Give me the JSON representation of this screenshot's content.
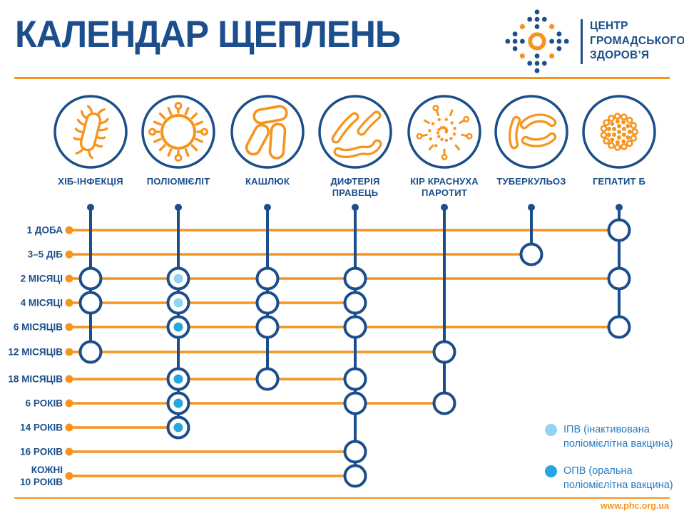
{
  "header": {
    "title": "КАЛЕНДАР ЩЕПЛЕНЬ",
    "org_name": "ЦЕНТР\nГРОМАДСЬКОГО\nЗДОРОВ’Я",
    "logo_icon": "phc-dotted-diamond-logo-icon"
  },
  "colors": {
    "navy": "#1B4E8A",
    "orange": "#F7941E",
    "legend_text": "#2A7CC0",
    "ipv_dot": "#92D3F1",
    "opv_dot": "#25A5E2"
  },
  "schedule": {
    "columns": [
      {
        "id": "hib",
        "label": "ХІБ-ІНФЕКЦІЯ",
        "icon": "hib-bacterium-icon"
      },
      {
        "id": "polio",
        "label": "ПОЛІОМІЄЛІТ",
        "icon": "polio-virus-icon"
      },
      {
        "id": "pertussis",
        "label": "КАШЛЮК",
        "icon": "pertussis-capsules-icon"
      },
      {
        "id": "diphtheria",
        "label": "ДИФТЕРІЯ\nПРАВЕЦЬ",
        "icon": "diphtheria-rods-icon"
      },
      {
        "id": "mmr",
        "label": "КІР КРАСНУХА\nПАРОТИТ",
        "icon": "measles-spiral-virus-icon"
      },
      {
        "id": "tb",
        "label": "ТУБЕРКУЛЬОЗ",
        "icon": "tuberculosis-rods-icon"
      },
      {
        "id": "hepb",
        "label": "ГЕПАТИТ Б",
        "icon": "hepatitis-b-cluster-icon"
      }
    ],
    "rows": [
      {
        "label": "1 ДОБА",
        "marks": [
          {
            "col": "hepb"
          }
        ]
      },
      {
        "label": "3–5 ДІБ",
        "marks": [
          {
            "col": "tb"
          }
        ]
      },
      {
        "label": "2 МІСЯЦІ",
        "marks": [
          {
            "col": "hib"
          },
          {
            "col": "polio",
            "dot": "ipv"
          },
          {
            "col": "pertussis"
          },
          {
            "col": "diphtheria"
          },
          {
            "col": "hepb"
          }
        ]
      },
      {
        "label": "4 МІСЯЦІ",
        "marks": [
          {
            "col": "hib"
          },
          {
            "col": "polio",
            "dot": "ipv"
          },
          {
            "col": "pertussis"
          },
          {
            "col": "diphtheria"
          }
        ]
      },
      {
        "label": "6 МІСЯЦІВ",
        "marks": [
          {
            "col": "polio",
            "dot": "opv"
          },
          {
            "col": "pertussis"
          },
          {
            "col": "diphtheria"
          },
          {
            "col": "hepb"
          }
        ]
      },
      {
        "label": "12 МІСЯЦІВ",
        "marks": [
          {
            "col": "hib"
          },
          {
            "col": "mmr"
          }
        ]
      },
      {
        "label": "18 МІСЯЦІВ",
        "marks": [
          {
            "col": "polio",
            "dot": "opv"
          },
          {
            "col": "pertussis"
          },
          {
            "col": "diphtheria"
          }
        ]
      },
      {
        "label": "6 РОКІВ",
        "marks": [
          {
            "col": "polio",
            "dot": "opv"
          },
          {
            "col": "diphtheria"
          },
          {
            "col": "mmr"
          }
        ]
      },
      {
        "label": "14 РОКІВ",
        "marks": [
          {
            "col": "polio",
            "dot": "opv"
          }
        ]
      },
      {
        "label": "16 РОКІВ",
        "marks": [
          {
            "col": "diphtheria"
          }
        ]
      },
      {
        "label": "КОЖНІ\n10 РОКІВ",
        "marks": [
          {
            "col": "diphtheria"
          }
        ]
      }
    ]
  },
  "legend": {
    "items": [
      {
        "id": "ipv",
        "color": "#92D3F1",
        "label": "ІПВ (інактивована\nполіомієлітна вакцина)"
      },
      {
        "id": "opv",
        "color": "#25A5E2",
        "label": "ОПВ (оральна\nполіомієлітна вакцина)"
      }
    ]
  },
  "footer": {
    "url": "www.phc.org.ua"
  }
}
